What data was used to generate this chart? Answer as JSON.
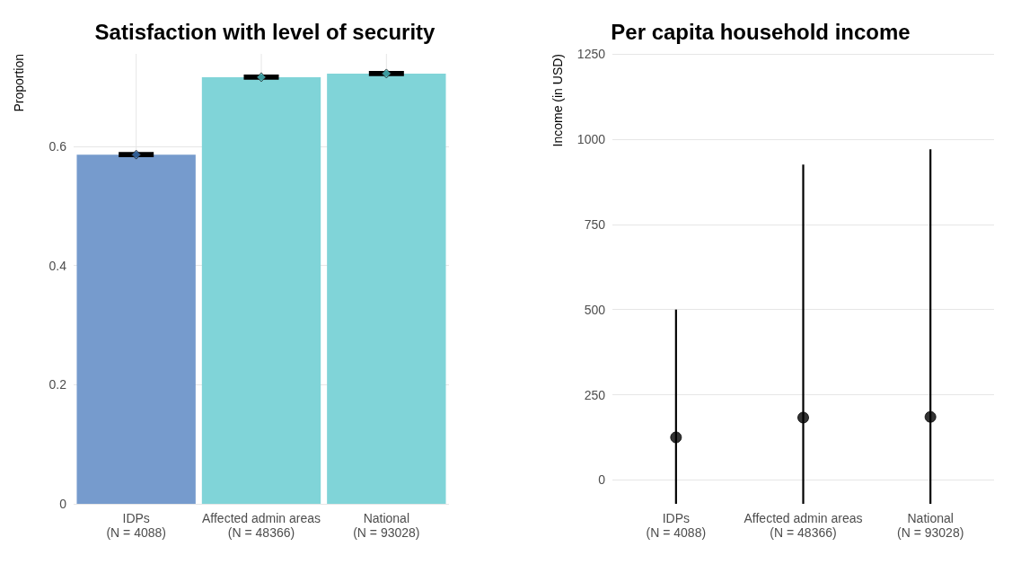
{
  "chart_data": [
    {
      "type": "bar",
      "title": "Satisfaction with level of security",
      "ylabel": "Proportion",
      "categories": [
        "IDPs\n(N = 4088)",
        "Affected admin areas\n(N = 48366)",
        "National\n(N = 93028)"
      ],
      "series": [
        {
          "type": "bar",
          "colors": [
            "#769bcd",
            "#80d4d8",
            "#80d4d8"
          ],
          "values": [
            0.586,
            0.716,
            0.722
          ],
          "errors": [
            0.002,
            0.002,
            0.002
          ]
        },
        {
          "type": "scatter",
          "x": [
            "IDPs\n(N = 4088)",
            "Affected admin areas\n(N = 48366)",
            "National\n(N = 93028)"
          ],
          "colors": [
            "#3d74b8",
            "#4bc0c5",
            "#4bc0c5"
          ],
          "values": [
            0.586,
            0.716,
            0.722
          ]
        }
      ],
      "marker": "diamond",
      "ylim": [
        0,
        0.755
      ],
      "yticks": [
        0,
        0.2,
        0.4,
        0.6
      ],
      "grid": true
    },
    {
      "type": "scatter",
      "title": "Per capita household income",
      "ylabel": "Income (in USD)",
      "categories": [
        "IDPs\n(N = 4088)",
        "Affected admin areas\n(N = 48366)",
        "National\n(N = 93028)"
      ],
      "series": [
        {
          "color": "#000000",
          "values": [
            125,
            183,
            185
          ],
          "errors": [
            [
              -70,
              500
            ],
            [
              -70,
              925
            ],
            [
              -70,
              970
            ]
          ]
        }
      ],
      "marker": "circle",
      "ylim": [
        -70,
        1250
      ],
      "yticks": [
        0,
        250,
        500,
        750,
        1000,
        1250
      ],
      "grid": "y"
    }
  ]
}
